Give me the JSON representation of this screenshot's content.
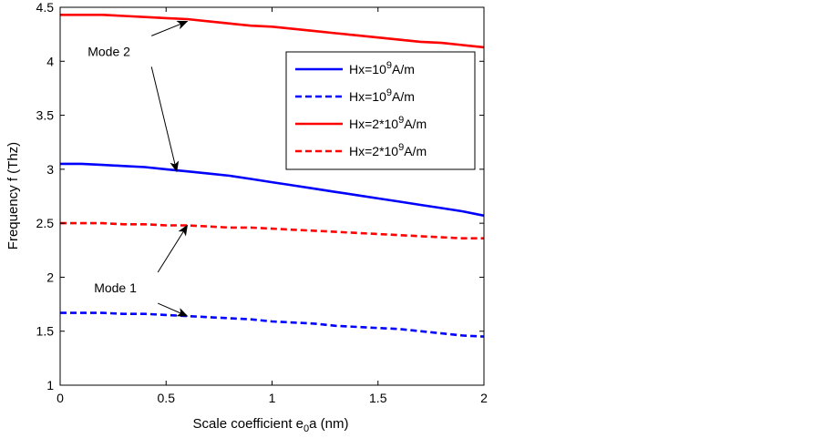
{
  "chart_data": {
    "type": "line",
    "title": "",
    "xlabel": {
      "base": "Scale coefficient e",
      "sub": "0",
      "tail": "a (nm)"
    },
    "ylabel": "Frequency f (Thz)",
    "xlim": [
      0,
      2
    ],
    "ylim": [
      1,
      4.5
    ],
    "x_ticks": [
      {
        "value": 0,
        "label": "0"
      },
      {
        "value": 0.5,
        "label": "0.5"
      },
      {
        "value": 1,
        "label": "1"
      },
      {
        "value": 1.5,
        "label": "1.5"
      },
      {
        "value": 2,
        "label": "2"
      }
    ],
    "y_ticks": [
      {
        "value": 1,
        "label": "1"
      },
      {
        "value": 1.5,
        "label": "1.5"
      },
      {
        "value": 2,
        "label": "2"
      },
      {
        "value": 2.5,
        "label": "2.5"
      },
      {
        "value": 3,
        "label": "3"
      },
      {
        "value": 3.5,
        "label": "3.5"
      },
      {
        "value": 4,
        "label": "4"
      },
      {
        "value": 4.5,
        "label": "4.5"
      }
    ],
    "grid": false,
    "legend_position": "top-right",
    "x": [
      0,
      0.1,
      0.2,
      0.3,
      0.4,
      0.5,
      0.6,
      0.7,
      0.8,
      0.9,
      1.0,
      1.1,
      1.2,
      1.3,
      1.4,
      1.5,
      1.6,
      1.7,
      1.8,
      1.9,
      2.0
    ],
    "series": [
      {
        "legend": {
          "prefix": "Hx=10",
          "sup": "9",
          "suffix": "A/m"
        },
        "color": "#0000ff",
        "dash": "solid",
        "values": [
          3.05,
          3.05,
          3.04,
          3.03,
          3.02,
          3.0,
          2.98,
          2.96,
          2.94,
          2.91,
          2.88,
          2.85,
          2.82,
          2.79,
          2.76,
          2.73,
          2.7,
          2.67,
          2.64,
          2.61,
          2.57
        ]
      },
      {
        "legend": {
          "prefix": "Hx=10",
          "sup": "9",
          "suffix": "A/m"
        },
        "color": "#0000ff",
        "dash": "dashed",
        "values": [
          1.67,
          1.67,
          1.67,
          1.66,
          1.66,
          1.65,
          1.64,
          1.63,
          1.62,
          1.61,
          1.59,
          1.58,
          1.57,
          1.55,
          1.54,
          1.53,
          1.52,
          1.5,
          1.48,
          1.46,
          1.45
        ]
      },
      {
        "legend": {
          "prefix": "Hx=2*10",
          "sup": "9",
          "suffix": "A/m"
        },
        "color": "#ff0000",
        "dash": "solid",
        "values": [
          4.43,
          4.43,
          4.43,
          4.42,
          4.41,
          4.4,
          4.39,
          4.37,
          4.35,
          4.33,
          4.32,
          4.3,
          4.28,
          4.26,
          4.24,
          4.22,
          4.2,
          4.18,
          4.17,
          4.15,
          4.13
        ]
      },
      {
        "legend": {
          "prefix": "Hx=2*10",
          "sup": "9",
          "suffix": "A/m"
        },
        "color": "#ff0000",
        "dash": "dashed",
        "values": [
          2.5,
          2.5,
          2.5,
          2.49,
          2.49,
          2.48,
          2.48,
          2.47,
          2.46,
          2.46,
          2.45,
          2.44,
          2.43,
          2.42,
          2.41,
          2.4,
          2.39,
          2.38,
          2.37,
          2.36,
          2.36
        ]
      }
    ],
    "annotations": [
      {
        "label": "Mode 2",
        "text_at": [
          0.13,
          4.05
        ],
        "arrows_to": [
          [
            0.6,
            4.37
          ],
          [
            0.55,
            2.98
          ]
        ]
      },
      {
        "label": "Mode 1",
        "text_at": [
          0.16,
          1.86
        ],
        "arrows_to": [
          [
            0.6,
            2.48
          ],
          [
            0.6,
            1.64
          ]
        ]
      }
    ]
  }
}
